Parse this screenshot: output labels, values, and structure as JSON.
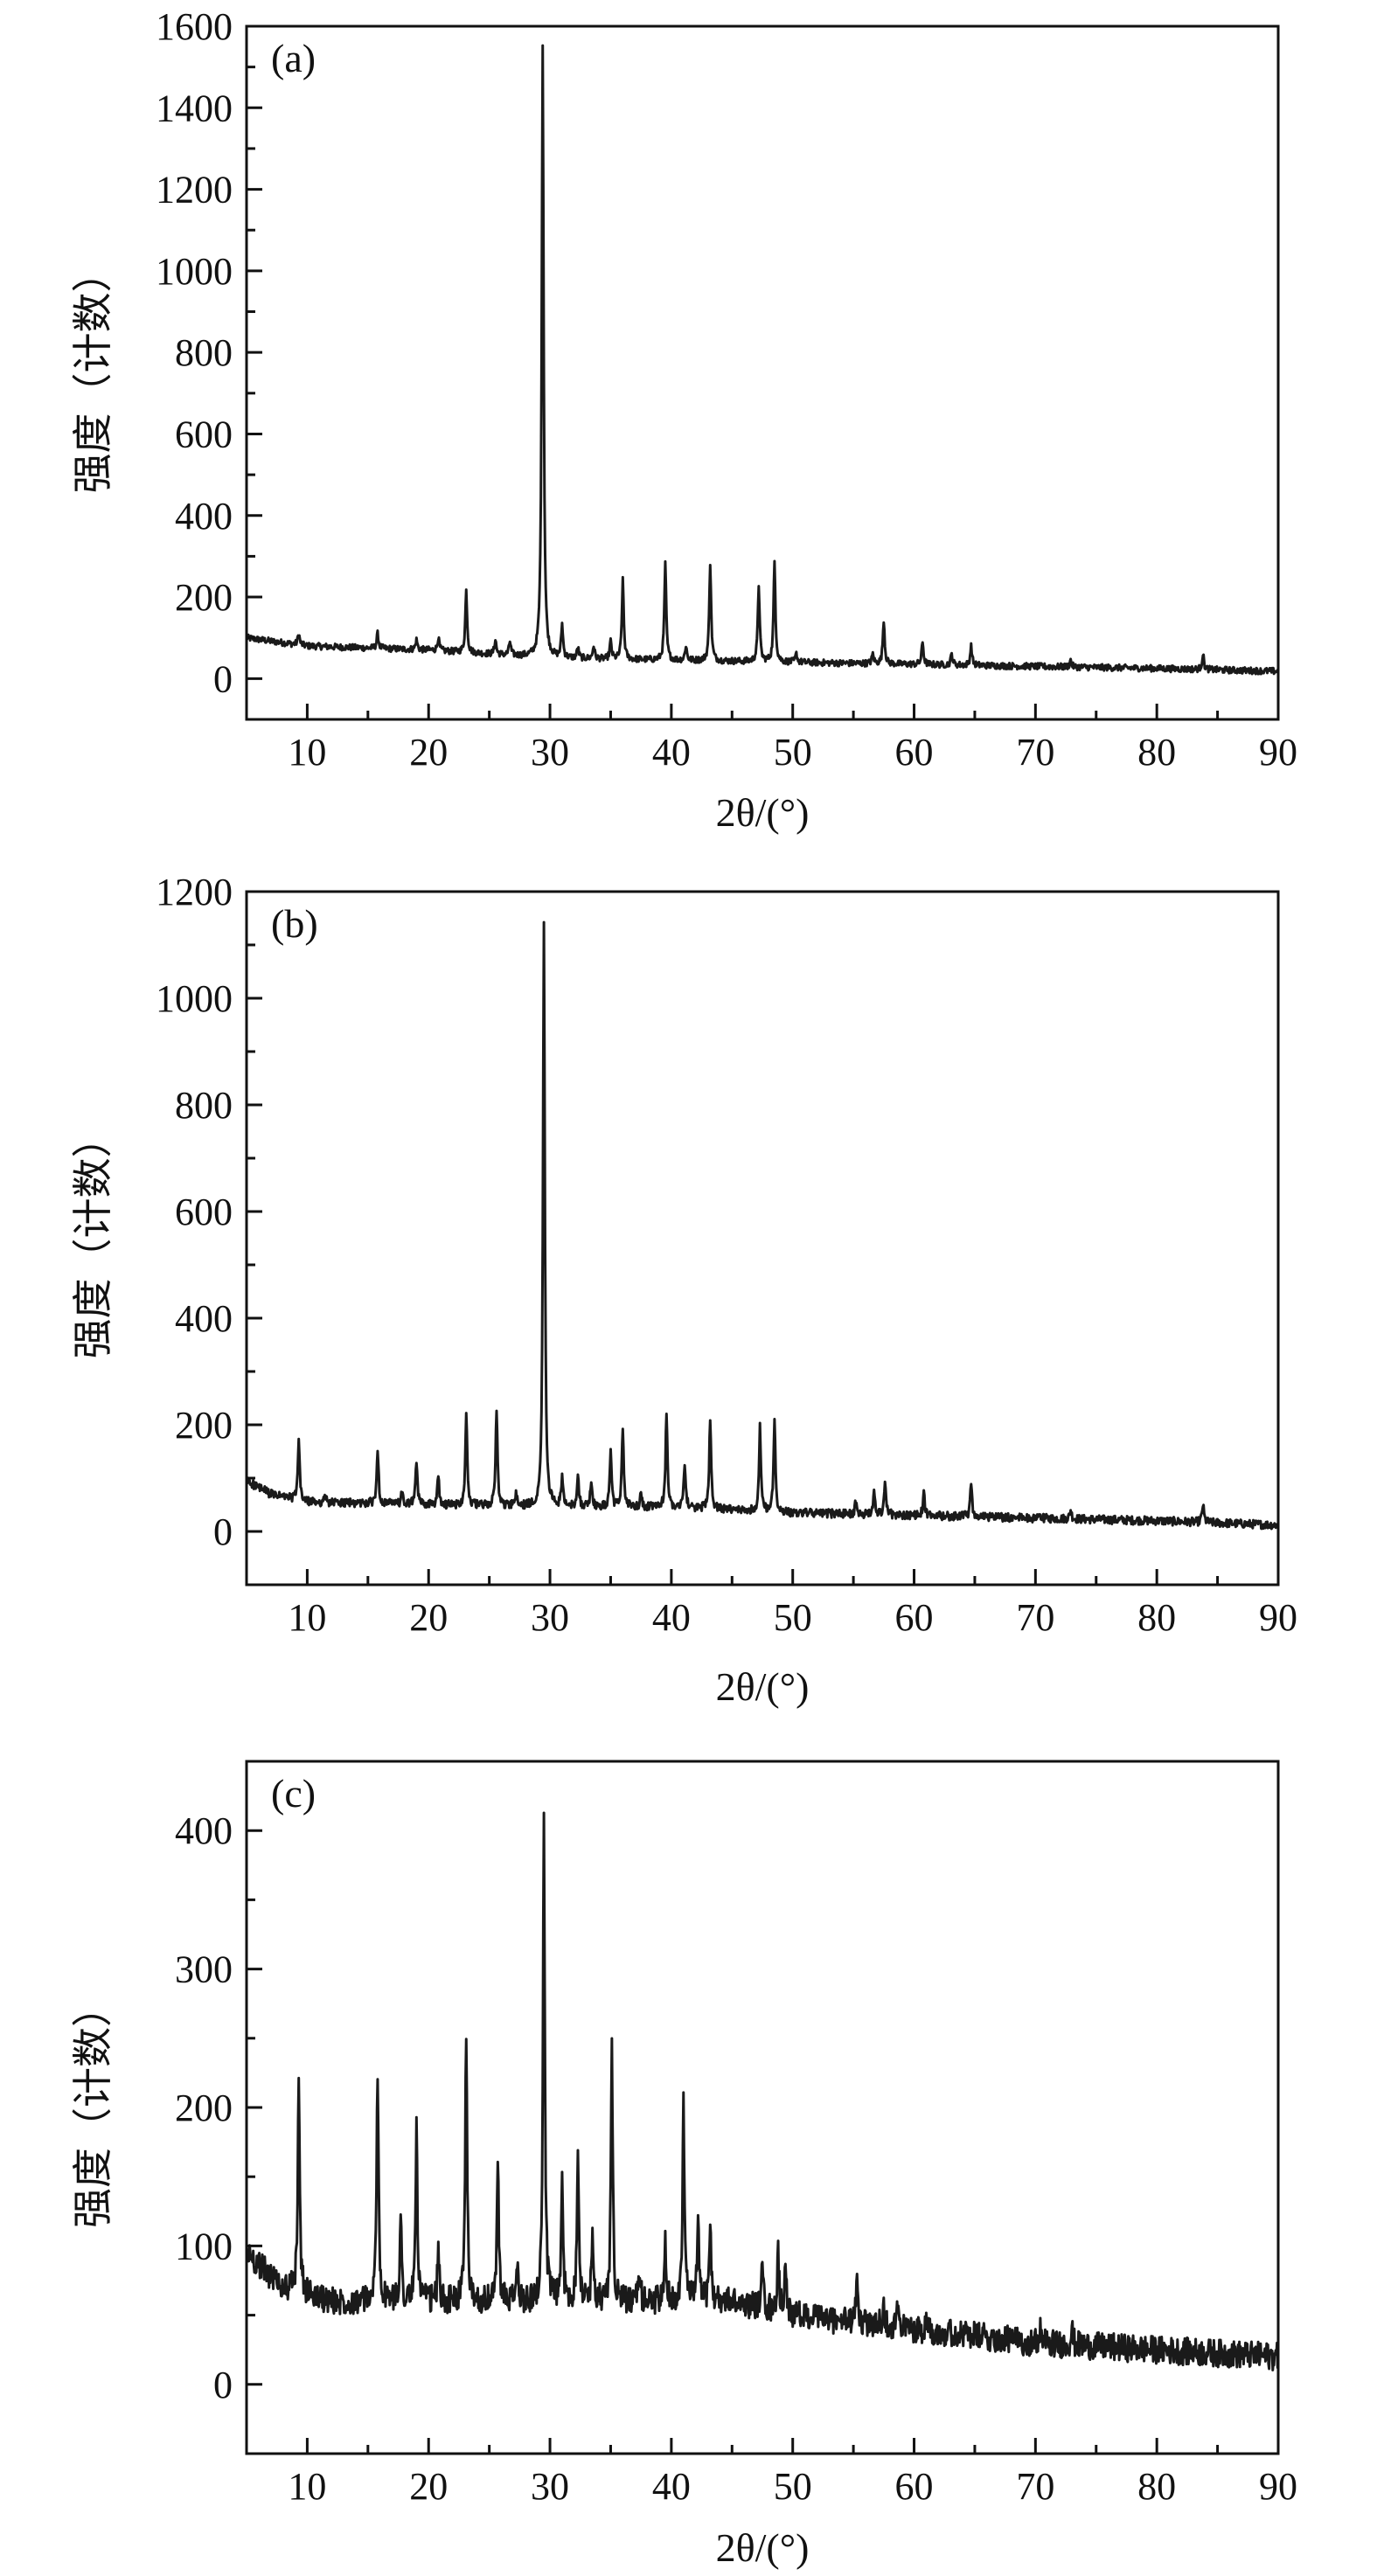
{
  "figure": {
    "panels": [
      "a",
      "b",
      "c"
    ]
  },
  "chart_data": [
    {
      "type": "line",
      "panel_label": "(a)",
      "xlabel": "2θ/(°)",
      "ylabel": "强度（计数）",
      "xlim": [
        5,
        90
      ],
      "ylim": [
        -100,
        1600
      ],
      "xticks": [
        10,
        20,
        30,
        40,
        50,
        60,
        70,
        80,
        90
      ],
      "yticks": [
        0,
        200,
        400,
        600,
        800,
        1000,
        1200,
        1400,
        1600
      ],
      "grid": false,
      "legend": "none",
      "baseline": [
        [
          5,
          100
        ],
        [
          10,
          80
        ],
        [
          20,
          70
        ],
        [
          30,
          50
        ],
        [
          40,
          45
        ],
        [
          50,
          40
        ],
        [
          60,
          35
        ],
        [
          70,
          30
        ],
        [
          80,
          25
        ],
        [
          90,
          18
        ]
      ],
      "noise": 8,
      "peaks": [
        {
          "x": 9.3,
          "y": 110
        },
        {
          "x": 15.8,
          "y": 110
        },
        {
          "x": 19.0,
          "y": 95
        },
        {
          "x": 20.8,
          "y": 100
        },
        {
          "x": 23.1,
          "y": 215
        },
        {
          "x": 25.5,
          "y": 95
        },
        {
          "x": 26.7,
          "y": 90
        },
        {
          "x": 29.4,
          "y": 1560
        },
        {
          "x": 31.0,
          "y": 130
        },
        {
          "x": 32.3,
          "y": 75
        },
        {
          "x": 33.6,
          "y": 80
        },
        {
          "x": 35.0,
          "y": 90
        },
        {
          "x": 36.0,
          "y": 240
        },
        {
          "x": 39.5,
          "y": 280
        },
        {
          "x": 41.2,
          "y": 80
        },
        {
          "x": 43.2,
          "y": 285
        },
        {
          "x": 47.2,
          "y": 230
        },
        {
          "x": 48.5,
          "y": 285
        },
        {
          "x": 50.3,
          "y": 60
        },
        {
          "x": 56.6,
          "y": 60
        },
        {
          "x": 57.5,
          "y": 145
        },
        {
          "x": 60.7,
          "y": 90
        },
        {
          "x": 63.1,
          "y": 60
        },
        {
          "x": 64.7,
          "y": 80
        },
        {
          "x": 72.9,
          "y": 45
        },
        {
          "x": 83.8,
          "y": 60
        }
      ]
    },
    {
      "type": "line",
      "panel_label": "(b)",
      "xlabel": "2θ/(°)",
      "ylabel": "强度（计数）",
      "xlim": [
        5,
        90
      ],
      "ylim": [
        -100,
        1200
      ],
      "xticks": [
        10,
        20,
        30,
        40,
        50,
        60,
        70,
        80,
        90
      ],
      "yticks": [
        0,
        200,
        400,
        600,
        800,
        1000,
        1200
      ],
      "grid": false,
      "legend": "none",
      "baseline": [
        [
          5,
          95
        ],
        [
          7,
          70
        ],
        [
          10,
          55
        ],
        [
          20,
          50
        ],
        [
          30,
          45
        ],
        [
          40,
          45
        ],
        [
          50,
          35
        ],
        [
          60,
          30
        ],
        [
          70,
          25
        ],
        [
          80,
          20
        ],
        [
          90,
          12
        ]
      ],
      "noise": 8,
      "peaks": [
        {
          "x": 9.3,
          "y": 170
        },
        {
          "x": 11.5,
          "y": 65
        },
        {
          "x": 15.8,
          "y": 155
        },
        {
          "x": 17.8,
          "y": 70
        },
        {
          "x": 19.0,
          "y": 130
        },
        {
          "x": 20.8,
          "y": 100
        },
        {
          "x": 23.1,
          "y": 225
        },
        {
          "x": 25.6,
          "y": 230
        },
        {
          "x": 27.2,
          "y": 70
        },
        {
          "x": 29.5,
          "y": 1140
        },
        {
          "x": 31.0,
          "y": 100
        },
        {
          "x": 32.3,
          "y": 110
        },
        {
          "x": 33.4,
          "y": 95
        },
        {
          "x": 35.0,
          "y": 145
        },
        {
          "x": 36.0,
          "y": 195
        },
        {
          "x": 37.5,
          "y": 70
        },
        {
          "x": 39.6,
          "y": 220
        },
        {
          "x": 41.1,
          "y": 130
        },
        {
          "x": 43.2,
          "y": 215
        },
        {
          "x": 47.3,
          "y": 195
        },
        {
          "x": 48.5,
          "y": 210
        },
        {
          "x": 55.2,
          "y": 55
        },
        {
          "x": 56.7,
          "y": 70
        },
        {
          "x": 57.6,
          "y": 95
        },
        {
          "x": 60.8,
          "y": 70
        },
        {
          "x": 64.7,
          "y": 85
        },
        {
          "x": 72.9,
          "y": 40
        },
        {
          "x": 83.8,
          "y": 50
        }
      ]
    },
    {
      "type": "line",
      "panel_label": "(c)",
      "xlabel": "2θ/(°)",
      "ylabel": "强度（计数）",
      "xlim": [
        5,
        90
      ],
      "ylim": [
        -50,
        450
      ],
      "xticks": [
        10,
        20,
        30,
        40,
        50,
        60,
        70,
        80,
        90
      ],
      "yticks": [
        0,
        100,
        200,
        300,
        400
      ],
      "grid": false,
      "legend": "none",
      "baseline": [
        [
          5,
          95
        ],
        [
          8,
          70
        ],
        [
          12,
          60
        ],
        [
          20,
          60
        ],
        [
          30,
          60
        ],
        [
          40,
          60
        ],
        [
          45,
          60
        ],
        [
          50,
          50
        ],
        [
          60,
          40
        ],
        [
          70,
          30
        ],
        [
          80,
          25
        ],
        [
          90,
          20
        ]
      ],
      "noise": 10,
      "peaks": [
        {
          "x": 9.3,
          "y": 225
        },
        {
          "x": 15.8,
          "y": 230
        },
        {
          "x": 17.7,
          "y": 120
        },
        {
          "x": 19.0,
          "y": 185
        },
        {
          "x": 20.8,
          "y": 95
        },
        {
          "x": 23.1,
          "y": 258
        },
        {
          "x": 25.7,
          "y": 162
        },
        {
          "x": 27.3,
          "y": 85
        },
        {
          "x": 29.5,
          "y": 408
        },
        {
          "x": 31.0,
          "y": 142
        },
        {
          "x": 32.3,
          "y": 175
        },
        {
          "x": 33.5,
          "y": 110
        },
        {
          "x": 35.1,
          "y": 240
        },
        {
          "x": 37.4,
          "y": 80
        },
        {
          "x": 39.5,
          "y": 100
        },
        {
          "x": 41.0,
          "y": 207
        },
        {
          "x": 42.2,
          "y": 120
        },
        {
          "x": 43.2,
          "y": 118
        },
        {
          "x": 47.5,
          "y": 85
        },
        {
          "x": 48.8,
          "y": 95
        },
        {
          "x": 49.4,
          "y": 90
        },
        {
          "x": 55.3,
          "y": 75
        },
        {
          "x": 57.5,
          "y": 60
        },
        {
          "x": 58.6,
          "y": 55
        },
        {
          "x": 61.1,
          "y": 50
        },
        {
          "x": 70.4,
          "y": 40
        },
        {
          "x": 73.0,
          "y": 40
        }
      ]
    }
  ]
}
